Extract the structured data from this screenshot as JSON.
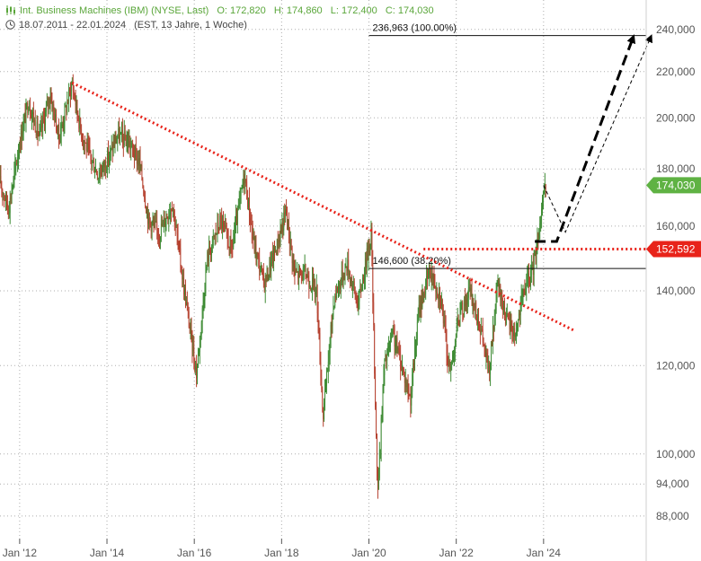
{
  "header": {
    "title": "Int. Business Machines (IBM) (NYSE, Last)",
    "open": "O: 172,820",
    "high": "H: 174,860",
    "low": "L: 172,400",
    "close": "C: 174,030",
    "date_range": "18.07.2011 - 22.01.2024",
    "period": "(EST, 13 Jahre, 1 Woche)"
  },
  "chart_data": {
    "type": "candlestick",
    "y_scale": "log",
    "ylim": [
      84,
      255
    ],
    "xlim": [
      2011.55,
      2026.35
    ],
    "y_ticks": [
      {
        "v": 240,
        "label": "240,000"
      },
      {
        "v": 220,
        "label": "220,000"
      },
      {
        "v": 200,
        "label": "200,000"
      },
      {
        "v": 180,
        "label": "180,000"
      },
      {
        "v": 160,
        "label": "160,000"
      },
      {
        "v": 140,
        "label": "140,000"
      },
      {
        "v": 120,
        "label": "120,000"
      },
      {
        "v": 100,
        "label": "100,000"
      },
      {
        "v": 94,
        "label": "94,000"
      },
      {
        "v": 88,
        "label": "88,000"
      }
    ],
    "x_ticks": [
      {
        "v": 2012,
        "label": "Jan '12"
      },
      {
        "v": 2014,
        "label": "Jan '14"
      },
      {
        "v": 2016,
        "label": "Jan '16"
      },
      {
        "v": 2018,
        "label": "Jan '18"
      },
      {
        "v": 2020,
        "label": "Jan '20"
      },
      {
        "v": 2022,
        "label": "Jan '22"
      },
      {
        "v": 2024,
        "label": "Jan '24"
      }
    ],
    "price_path": [
      [
        2011.55,
        175
      ],
      [
        2011.75,
        166
      ],
      [
        2012.0,
        190
      ],
      [
        2012.2,
        207
      ],
      [
        2012.45,
        192
      ],
      [
        2012.7,
        210
      ],
      [
        2012.9,
        192
      ],
      [
        2013.2,
        215
      ],
      [
        2013.4,
        195
      ],
      [
        2013.6,
        185
      ],
      [
        2013.8,
        178
      ],
      [
        2014.0,
        183
      ],
      [
        2014.25,
        193
      ],
      [
        2014.5,
        190
      ],
      [
        2014.75,
        182
      ],
      [
        2014.95,
        162
      ],
      [
        2015.2,
        158
      ],
      [
        2015.5,
        168
      ],
      [
        2015.75,
        142
      ],
      [
        2016.05,
        118
      ],
      [
        2016.3,
        150
      ],
      [
        2016.6,
        162
      ],
      [
        2016.85,
        152
      ],
      [
        2017.15,
        178
      ],
      [
        2017.35,
        155
      ],
      [
        2017.6,
        142
      ],
      [
        2017.9,
        154
      ],
      [
        2018.1,
        165
      ],
      [
        2018.3,
        145
      ],
      [
        2018.55,
        145
      ],
      [
        2018.8,
        140
      ],
      [
        2018.95,
        108
      ],
      [
        2019.2,
        138
      ],
      [
        2019.5,
        148
      ],
      [
        2019.75,
        136
      ],
      [
        2019.95,
        150
      ],
      [
        2020.05,
        158
      ],
      [
        2020.2,
        92
      ],
      [
        2020.35,
        120
      ],
      [
        2020.55,
        128
      ],
      [
        2020.75,
        120
      ],
      [
        2020.95,
        112
      ],
      [
        2021.15,
        135
      ],
      [
        2021.4,
        146
      ],
      [
        2021.65,
        138
      ],
      [
        2021.85,
        118
      ],
      [
        2022.05,
        132
      ],
      [
        2022.3,
        140
      ],
      [
        2022.55,
        130
      ],
      [
        2022.75,
        118
      ],
      [
        2022.95,
        142
      ],
      [
        2023.15,
        132
      ],
      [
        2023.35,
        128
      ],
      [
        2023.55,
        140
      ],
      [
        2023.75,
        146
      ],
      [
        2023.85,
        155
      ],
      [
        2023.95,
        165
      ],
      [
        2024.06,
        174
      ]
    ],
    "last_price": {
      "value": 174.03,
      "label": "174,030",
      "color": "#5fb243"
    },
    "resistance": {
      "value": 152.592,
      "label": "152,592",
      "color": "#e8231a",
      "x_start": 2021.25
    },
    "trendline": {
      "from": [
        2013.2,
        215
      ],
      "to": [
        2024.7,
        129
      ],
      "color": "#e8231a"
    },
    "fib_levels": [
      {
        "value": 236.963,
        "label": "236,963 (100.00%)",
        "x_start": 2020.0
      },
      {
        "value": 146.6,
        "label": "146,600 (38.20%)",
        "x_start": 2020.0
      }
    ],
    "projection_main": [
      [
        2023.8,
        155
      ],
      [
        2024.3,
        155
      ],
      [
        2026.05,
        236
      ]
    ],
    "projection_alt": [
      [
        2024.0,
        174
      ],
      [
        2024.5,
        158
      ],
      [
        2026.45,
        236
      ]
    ],
    "colors": {
      "up": "#3c8a32",
      "down": "#b5402e",
      "grid": "#999999",
      "axis_text": "#555555"
    }
  }
}
